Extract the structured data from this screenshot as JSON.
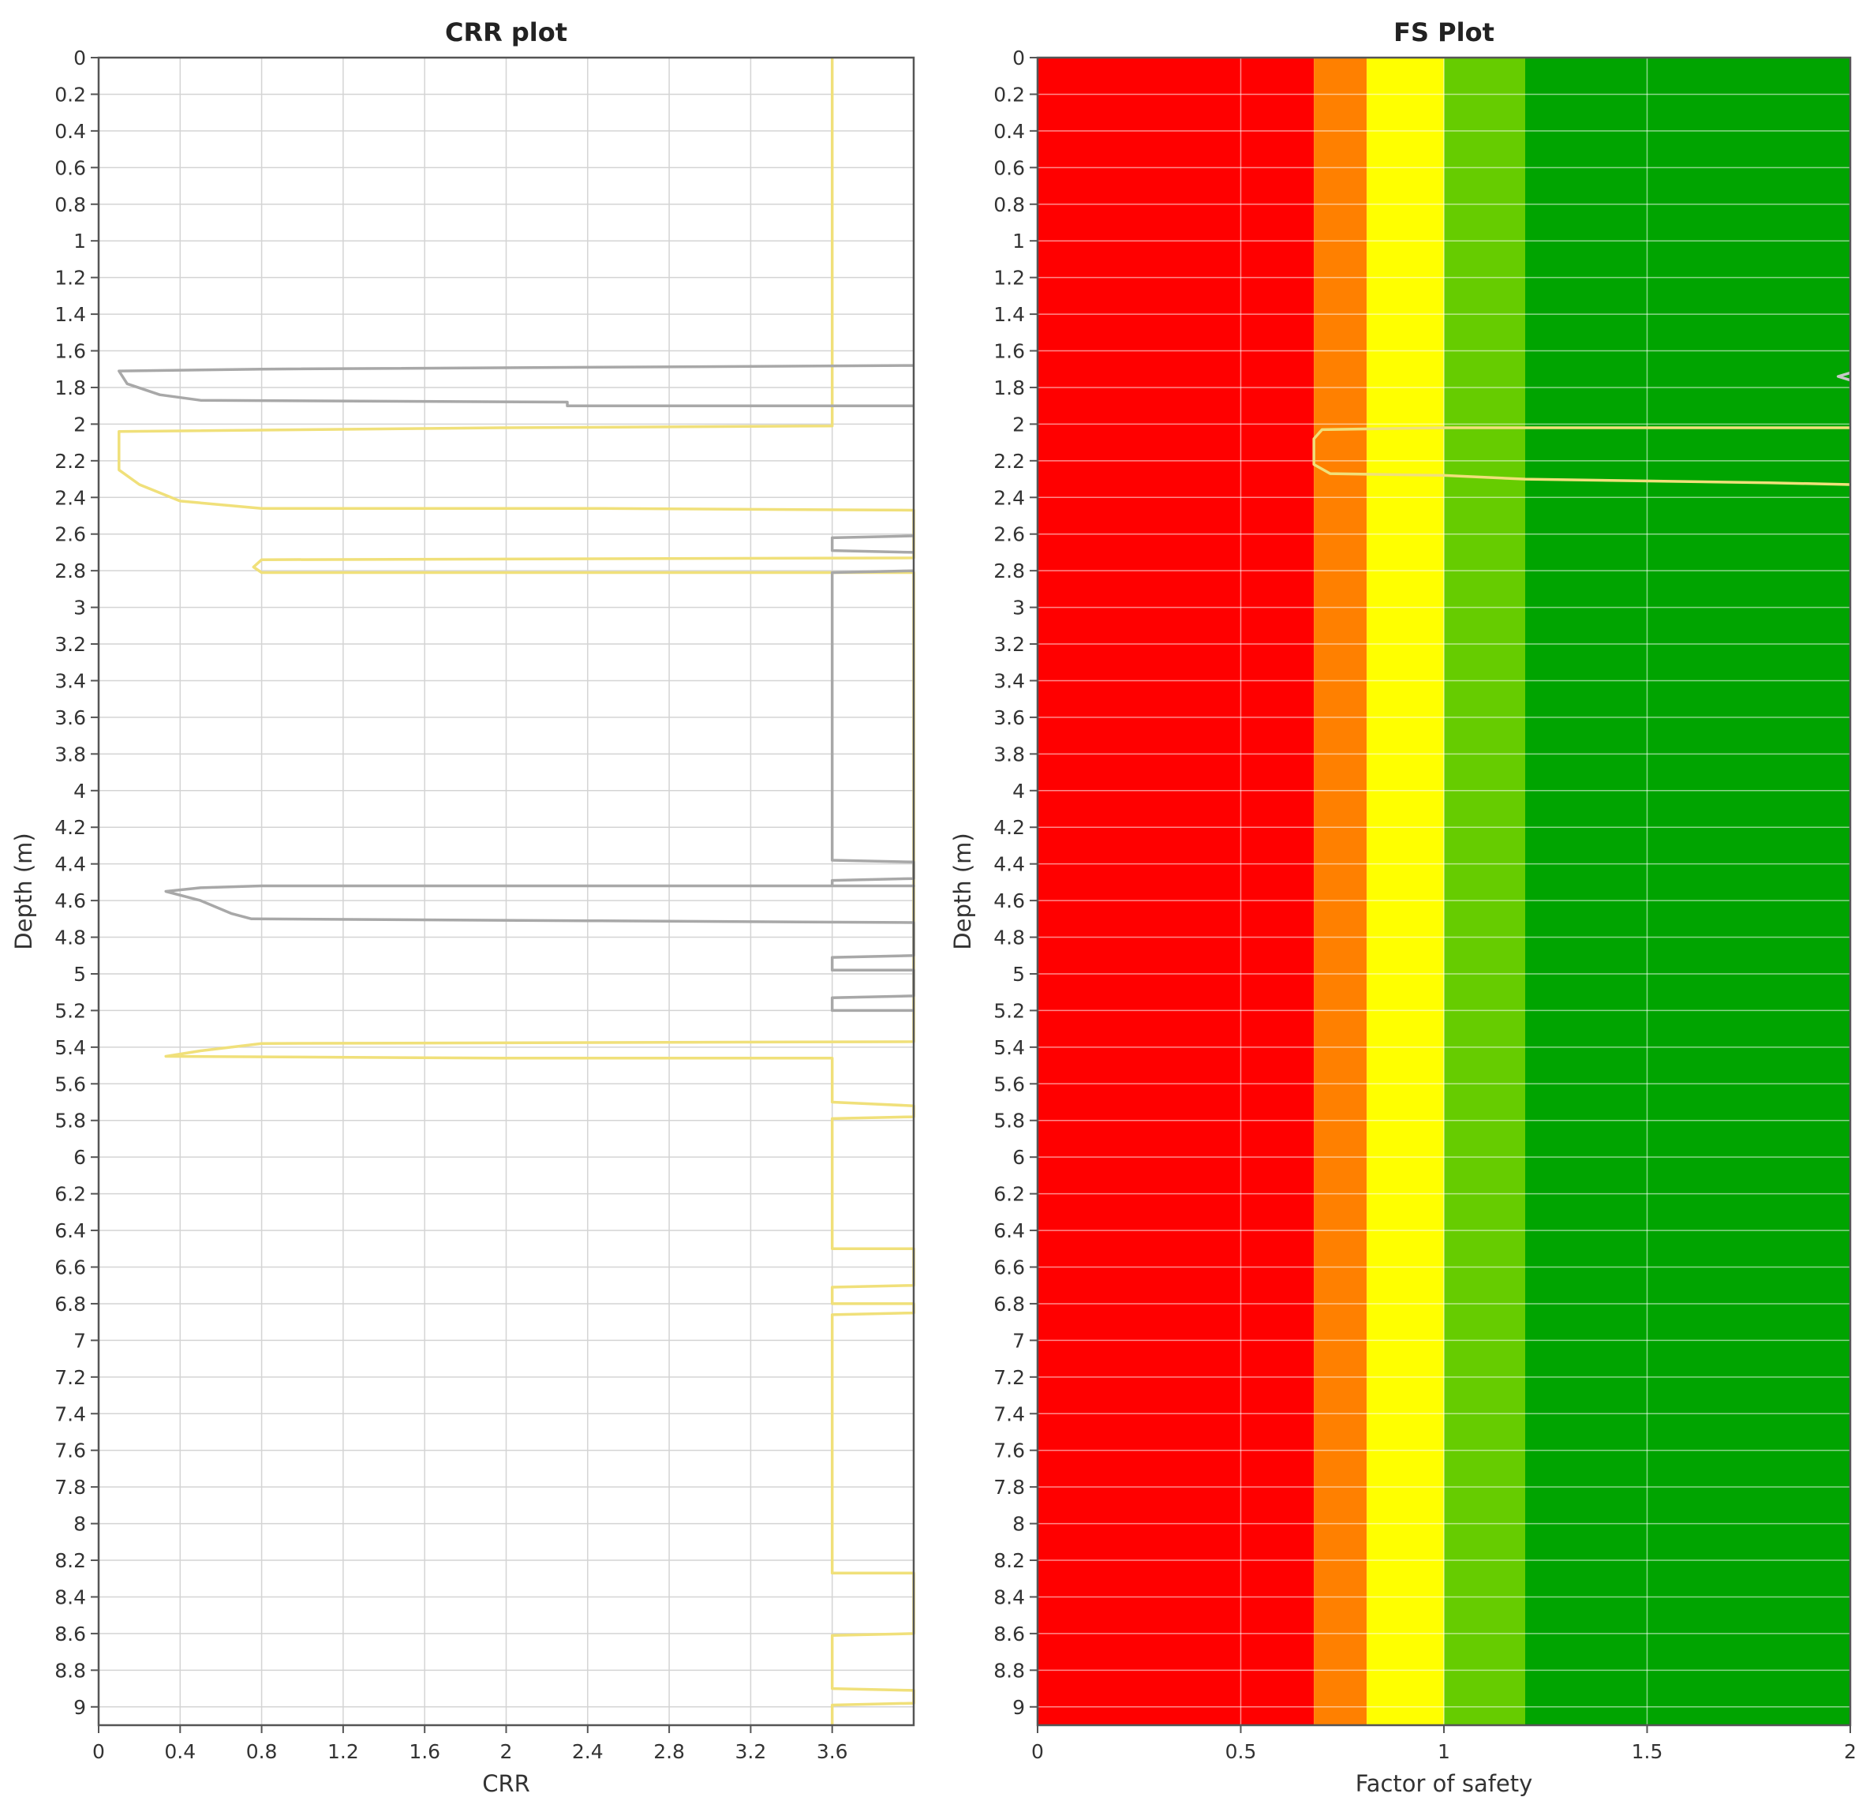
{
  "chart_data": [
    {
      "type": "line",
      "title": "CRR plot",
      "xlabel": "CRR",
      "ylabel": "Depth (m)",
      "xlim": [
        0,
        4.0
      ],
      "ylim": [
        9.1,
        0
      ],
      "x_ticks": [
        "0",
        "0.4",
        "0.8",
        "1.2",
        "1.6",
        "2",
        "2.4",
        "2.8",
        "3.2",
        "3.6"
      ],
      "y_ticks": [
        "0",
        "0.2",
        "0.4",
        "0.6",
        "0.8",
        "1",
        "1.2",
        "1.4",
        "1.6",
        "1.8",
        "2",
        "2.2",
        "2.4",
        "2.6",
        "2.8",
        "3",
        "3.2",
        "3.4",
        "3.6",
        "3.8",
        "4",
        "4.2",
        "4.4",
        "4.6",
        "4.8",
        "5",
        "5.2",
        "5.4",
        "5.6",
        "5.8",
        "6",
        "6.2",
        "6.4",
        "6.6",
        "6.8",
        "7",
        "7.2",
        "7.4",
        "7.6",
        "7.8",
        "8",
        "8.2",
        "8.4",
        "8.6",
        "8.8",
        "9"
      ],
      "grid": true,
      "series": [
        {
          "color": "#f0e07a",
          "points": [
            [
              3.6,
              0.0
            ],
            [
              3.6,
              2.01
            ],
            [
              2.0,
              2.02
            ],
            [
              0.1,
              2.04
            ],
            [
              0.1,
              2.25
            ],
            [
              0.2,
              2.33
            ],
            [
              0.4,
              2.42
            ],
            [
              0.8,
              2.46
            ],
            [
              2.4,
              2.46
            ],
            [
              4.0,
              2.47
            ],
            [
              4.0,
              2.73
            ],
            [
              0.8,
              2.74
            ],
            [
              0.76,
              2.78
            ],
            [
              0.8,
              2.81
            ],
            [
              4.0,
              2.81
            ],
            [
              4.0,
              5.37
            ],
            [
              0.8,
              5.38
            ],
            [
              0.5,
              5.42
            ],
            [
              0.33,
              5.45
            ],
            [
              2.0,
              5.46
            ],
            [
              3.6,
              5.46
            ],
            [
              3.6,
              5.7
            ],
            [
              4.0,
              5.72
            ],
            [
              4.0,
              5.78
            ],
            [
              3.6,
              5.79
            ],
            [
              3.6,
              6.5
            ],
            [
              4.0,
              6.5
            ],
            [
              4.0,
              6.7
            ],
            [
              3.6,
              6.71
            ],
            [
              3.6,
              6.8
            ],
            [
              4.0,
              6.8
            ],
            [
              4.0,
              6.85
            ],
            [
              3.6,
              6.86
            ],
            [
              3.6,
              8.27
            ],
            [
              4.0,
              8.27
            ],
            [
              4.0,
              8.6
            ],
            [
              3.6,
              8.61
            ],
            [
              3.6,
              8.9
            ],
            [
              4.0,
              8.91
            ],
            [
              4.0,
              8.98
            ],
            [
              3.6,
              8.99
            ],
            [
              3.6,
              9.1
            ]
          ]
        },
        {
          "color": "#a8a8a8",
          "points": [
            [
              4.0,
              1.68
            ],
            [
              0.8,
              1.7
            ],
            [
              0.1,
              1.71
            ],
            [
              0.14,
              1.78
            ],
            [
              0.3,
              1.84
            ],
            [
              0.5,
              1.87
            ],
            [
              2.3,
              1.88
            ],
            [
              2.3,
              1.9
            ],
            [
              4.0,
              1.9
            ]
          ]
        },
        {
          "color": "#a8a8a8",
          "points": [
            [
              4.0,
              2.61
            ],
            [
              3.6,
              2.62
            ],
            [
              3.6,
              2.69
            ],
            [
              4.0,
              2.7
            ]
          ]
        },
        {
          "color": "#a8a8a8",
          "points": [
            [
              4.0,
              2.8
            ],
            [
              3.6,
              2.81
            ],
            [
              3.6,
              4.38
            ],
            [
              4.0,
              4.39
            ],
            [
              4.0,
              4.48
            ],
            [
              3.6,
              4.49
            ],
            [
              3.6,
              4.52
            ],
            [
              4.0,
              4.52
            ],
            [
              0.8,
              4.52
            ],
            [
              0.5,
              4.53
            ],
            [
              0.33,
              4.55
            ],
            [
              0.5,
              4.6
            ],
            [
              0.65,
              4.67
            ],
            [
              0.75,
              4.7
            ],
            [
              2.4,
              4.71
            ],
            [
              4.0,
              4.72
            ],
            [
              4.0,
              4.9
            ],
            [
              3.6,
              4.91
            ],
            [
              3.6,
              4.98
            ],
            [
              4.0,
              4.98
            ],
            [
              4.0,
              5.12
            ],
            [
              3.6,
              5.13
            ],
            [
              3.6,
              5.2
            ],
            [
              4.0,
              5.2
            ]
          ]
        }
      ]
    },
    {
      "type": "line",
      "title": "FS Plot",
      "xlabel": "Factor of safety",
      "ylabel": "Depth (m)",
      "xlim": [
        0,
        2
      ],
      "ylim": [
        9.1,
        0
      ],
      "x_ticks": [
        "0",
        "0.5",
        "1",
        "1.5",
        "2"
      ],
      "y_ticks": [
        "0",
        "0.2",
        "0.4",
        "0.6",
        "0.8",
        "1",
        "1.2",
        "1.4",
        "1.6",
        "1.8",
        "2",
        "2.2",
        "2.4",
        "2.6",
        "2.8",
        "3",
        "3.2",
        "3.4",
        "3.6",
        "3.8",
        "4",
        "4.2",
        "4.4",
        "4.6",
        "4.8",
        "5",
        "5.2",
        "5.4",
        "5.6",
        "5.8",
        "6",
        "6.2",
        "6.4",
        "6.6",
        "6.8",
        "7",
        "7.2",
        "7.4",
        "7.6",
        "7.8",
        "8",
        "8.2",
        "8.4",
        "8.6",
        "8.8",
        "9"
      ],
      "grid": true,
      "bands": [
        {
          "from": 0,
          "to": 0.68,
          "color": "#ff0000"
        },
        {
          "from": 0.68,
          "to": 0.81,
          "color": "#ff8000"
        },
        {
          "from": 0.81,
          "to": 1.0,
          "color": "#ffff00"
        },
        {
          "from": 1.0,
          "to": 1.2,
          "color": "#66cc00"
        },
        {
          "from": 1.2,
          "to": 2.0,
          "color": "#00a400"
        }
      ],
      "series": [
        {
          "color": "#f0e07a",
          "points": [
            [
              2.0,
              2.02
            ],
            [
              1.0,
              2.02
            ],
            [
              0.7,
              2.03
            ],
            [
              0.68,
              2.08
            ],
            [
              0.68,
              2.22
            ],
            [
              0.72,
              2.27
            ],
            [
              1.0,
              2.28
            ],
            [
              1.2,
              2.3
            ],
            [
              1.8,
              2.32
            ],
            [
              2.0,
              2.33
            ]
          ]
        },
        {
          "color": "#c8c8c8",
          "points": [
            [
              2.0,
              1.72
            ],
            [
              1.97,
              1.74
            ],
            [
              2.0,
              1.76
            ]
          ]
        }
      ]
    }
  ]
}
